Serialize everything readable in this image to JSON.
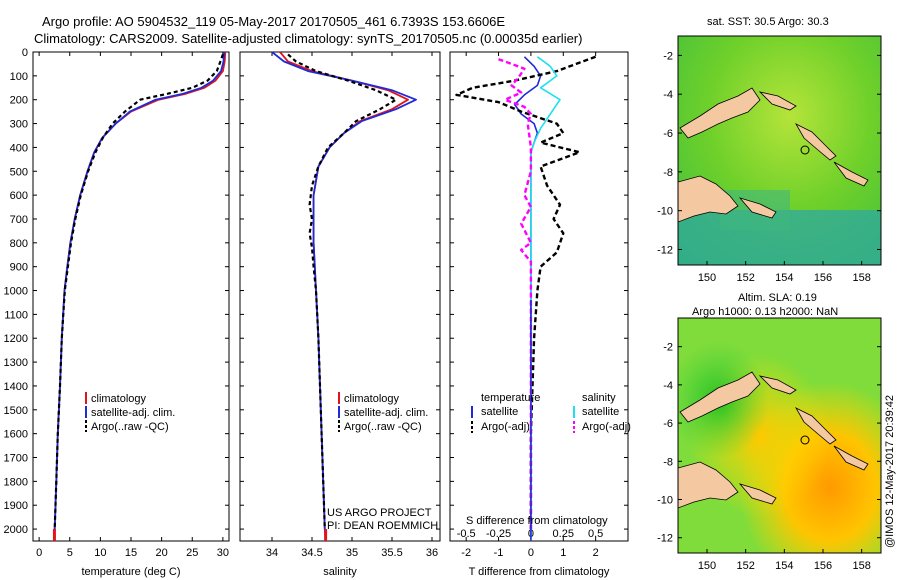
{
  "header": {
    "line1": "Argo profile: AO 5904532_119 05-May-2017 20170505_461 6.7393S 153.6606E",
    "line2": "Climatology: CARS2009. Satellite-adjusted climatology: synTS_20170505.nc (0.00035d earlier)"
  },
  "credits": {
    "line1": "US ARGO PROJECT",
    "line2": "PI: DEAN ROEMMICH"
  },
  "watermark": "@IMOS 12-May-2017 20:39:42",
  "colors": {
    "climatology": "#e0141e",
    "satellite": "#1f2bd8",
    "argo": "#000000",
    "sat_salinity": "#20e0f0",
    "argo_salinity_diff": "#ff00ff",
    "land": "#f4c8a0",
    "sea_green": "#3fc51f"
  },
  "chart_data": [
    {
      "type": "line",
      "title": "",
      "xlabel": "temperature (deg C)",
      "ylabel": "",
      "xlim": [
        -1,
        31
      ],
      "ylim": [
        2050,
        0
      ],
      "xticks": [
        "0",
        "5",
        "10",
        "15",
        "20",
        "25",
        "30"
      ],
      "yticks": [
        "0",
        "100",
        "200",
        "300",
        "400",
        "500",
        "600",
        "700",
        "800",
        "900",
        "1000",
        "1100",
        "1200",
        "1300",
        "1400",
        "1500",
        "1600",
        "1700",
        "1800",
        "1900",
        "2000"
      ],
      "legend": [
        "climatology",
        "satellite-adj. clim.",
        "Argo(..raw -QC)"
      ],
      "series": [
        {
          "name": "climatology",
          "points": [
            [
              30.4,
              0
            ],
            [
              30.3,
              40
            ],
            [
              30.0,
              80
            ],
            [
              28.8,
              120
            ],
            [
              27,
              150
            ],
            [
              24,
              175
            ],
            [
              19.5,
              200
            ],
            [
              15,
              250
            ],
            [
              12.5,
              300
            ],
            [
              10.3,
              360
            ],
            [
              9,
              420
            ],
            [
              7.9,
              500
            ],
            [
              6.7,
              600
            ],
            [
              5.8,
              700
            ],
            [
              5.1,
              800
            ],
            [
              4.6,
              900
            ],
            [
              4.15,
              1000
            ],
            [
              3.7,
              1200
            ],
            [
              3.4,
              1400
            ],
            [
              3.05,
              1600
            ],
            [
              2.8,
              1800
            ],
            [
              2.55,
              2000
            ],
            [
              2.5,
              2040
            ]
          ]
        },
        {
          "name": "satellite-adj. clim.",
          "points": [
            [
              30.2,
              0
            ],
            [
              30.1,
              40
            ],
            [
              29.7,
              80
            ],
            [
              28.4,
              120
            ],
            [
              26.5,
              150
            ],
            [
              23.5,
              175
            ],
            [
              19,
              200
            ],
            [
              14.8,
              250
            ],
            [
              12.5,
              300
            ],
            [
              10.3,
              360
            ],
            [
              9,
              420
            ],
            [
              7.9,
              500
            ],
            [
              6.7,
              600
            ],
            [
              5.8,
              700
            ],
            [
              5.1,
              800
            ],
            [
              4.6,
              900
            ],
            [
              4.15,
              1000
            ],
            [
              3.7,
              1200
            ],
            [
              3.4,
              1400
            ],
            [
              3.05,
              1600
            ],
            [
              2.8,
              1800
            ],
            [
              2.55,
              2000
            ],
            [
              2.5,
              2040
            ]
          ]
        },
        {
          "name": "Argo(..raw -QC)",
          "points": [
            [
              30.0,
              10
            ],
            [
              29.6,
              40
            ],
            [
              29.0,
              80
            ],
            [
              27.5,
              120
            ],
            [
              25,
              150
            ],
            [
              21,
              175
            ],
            [
              16.5,
              200
            ],
            [
              14,
              250
            ],
            [
              12,
              300
            ],
            [
              10.4,
              360
            ],
            [
              9.2,
              420
            ],
            [
              8.0,
              500
            ],
            [
              6.8,
              600
            ],
            [
              5.9,
              700
            ],
            [
              5.2,
              800
            ],
            [
              4.7,
              900
            ],
            [
              4.2,
              1000
            ],
            [
              3.7,
              1200
            ],
            [
              3.4,
              1400
            ],
            [
              3.05,
              1600
            ],
            [
              2.8,
              1800
            ],
            [
              2.55,
              2000
            ]
          ]
        }
      ]
    },
    {
      "type": "line",
      "xlabel": "salinity",
      "xlim": [
        33.6,
        36.1
      ],
      "ylim": [
        2050,
        0
      ],
      "xticks": [
        "34",
        "34.5",
        "35",
        "35.5",
        "36"
      ],
      "legend": [
        "climatology",
        "satellite-adj. clim.",
        "Argo(..raw -QC)"
      ],
      "series": [
        {
          "name": "climatology",
          "points": [
            [
              34.1,
              0
            ],
            [
              34.2,
              40
            ],
            [
              34.5,
              80
            ],
            [
              35.0,
              120
            ],
            [
              35.45,
              160
            ],
            [
              35.7,
              200
            ],
            [
              35.5,
              240
            ],
            [
              35.1,
              290
            ],
            [
              34.9,
              340
            ],
            [
              34.72,
              400
            ],
            [
              34.58,
              480
            ],
            [
              34.52,
              600
            ],
            [
              34.52,
              800
            ],
            [
              34.55,
              1000
            ],
            [
              34.58,
              1200
            ],
            [
              34.6,
              1400
            ],
            [
              34.62,
              1600
            ],
            [
              34.64,
              1800
            ],
            [
              34.66,
              2000
            ],
            [
              34.67,
              2040
            ]
          ]
        },
        {
          "name": "satellite-adj. clim.",
          "points": [
            [
              34.0,
              0
            ],
            [
              34.15,
              40
            ],
            [
              34.45,
              80
            ],
            [
              35.0,
              120
            ],
            [
              35.5,
              160
            ],
            [
              35.8,
              200
            ],
            [
              35.55,
              240
            ],
            [
              35.12,
              290
            ],
            [
              34.9,
              340
            ],
            [
              34.72,
              400
            ],
            [
              34.58,
              480
            ],
            [
              34.52,
              600
            ],
            [
              34.52,
              800
            ],
            [
              34.55,
              1000
            ],
            [
              34.58,
              1200
            ],
            [
              34.6,
              1400
            ],
            [
              34.62,
              1600
            ],
            [
              34.64,
              1800
            ],
            [
              34.66,
              2000
            ],
            [
              34.67,
              2040
            ]
          ]
        },
        {
          "name": "Argo(..raw -QC)",
          "points": [
            [
              34.2,
              10
            ],
            [
              34.3,
              40
            ],
            [
              34.55,
              80
            ],
            [
              34.95,
              120
            ],
            [
              35.3,
              160
            ],
            [
              35.55,
              200
            ],
            [
              35.35,
              240
            ],
            [
              35.05,
              290
            ],
            [
              34.9,
              340
            ],
            [
              34.7,
              400
            ],
            [
              34.58,
              480
            ],
            [
              34.5,
              560
            ],
            [
              34.47,
              640
            ],
            [
              34.5,
              700
            ],
            [
              34.47,
              760
            ],
            [
              34.5,
              820
            ],
            [
              34.52,
              900
            ],
            [
              34.55,
              1000
            ],
            [
              34.58,
              1200
            ],
            [
              34.6,
              1400
            ],
            [
              34.62,
              1600
            ],
            [
              34.64,
              1800
            ],
            [
              34.66,
              2000
            ]
          ]
        }
      ]
    },
    {
      "type": "line",
      "xlabel": "T difference from climatology",
      "top_xlabel": "S difference from climatology",
      "xlim": [
        -2.5,
        3.0
      ],
      "ylim": [
        2050,
        0
      ],
      "xticks": [
        "-2",
        "-1",
        "0",
        "1",
        "2"
      ],
      "top_xticks": [
        "-0.5",
        "-0.25",
        "0",
        "0.25",
        "0.5"
      ],
      "legend_left": {
        "title": "temperature",
        "items": [
          "satellite",
          "Argo(-adj)"
        ]
      },
      "legend_right": {
        "title": "salinity",
        "items": [
          "satellite",
          "Argo(-adj)"
        ]
      },
      "series": [
        {
          "name": "temperature satellite",
          "points": [
            [
              -0.2,
              20
            ],
            [
              0.1,
              60
            ],
            [
              0.3,
              100
            ],
            [
              0.2,
              140
            ],
            [
              -0.2,
              180
            ],
            [
              -0.5,
              220
            ],
            [
              -0.3,
              260
            ],
            [
              0.1,
              300
            ],
            [
              0.2,
              340
            ],
            [
              0.1,
              380
            ],
            [
              0.0,
              420
            ],
            [
              0.0,
              600
            ],
            [
              0.0,
              1000
            ],
            [
              0.0,
              2040
            ]
          ]
        },
        {
          "name": "temperature Argo(-adj)",
          "points": [
            [
              2.0,
              20
            ],
            [
              1.6,
              40
            ],
            [
              0.8,
              80
            ],
            [
              -0.5,
              120
            ],
            [
              -1.8,
              150
            ],
            [
              -2.3,
              180
            ],
            [
              -1.0,
              210
            ],
            [
              -0.3,
              250
            ],
            [
              0.8,
              300
            ],
            [
              1.0,
              340
            ],
            [
              0.3,
              380
            ],
            [
              1.5,
              420
            ],
            [
              0.3,
              480
            ],
            [
              0.5,
              560
            ],
            [
              0.9,
              640
            ],
            [
              0.7,
              700
            ],
            [
              1.0,
              760
            ],
            [
              0.8,
              840
            ],
            [
              0.3,
              900
            ],
            [
              0.2,
              1000
            ],
            [
              0.1,
              1200
            ],
            [
              0.05,
              1400
            ],
            [
              0.0,
              1600
            ],
            [
              0.0,
              2000
            ]
          ]
        },
        {
          "name": "salinity satellite",
          "points": [
            [
              0.2,
              20
            ],
            [
              0.6,
              60
            ],
            [
              0.8,
              100
            ],
            [
              0.3,
              150
            ],
            [
              0.9,
              200
            ],
            [
              0.6,
              260
            ],
            [
              0.3,
              320
            ],
            [
              0.1,
              380
            ],
            [
              0.0,
              420
            ],
            [
              0.0,
              600
            ],
            [
              0.0,
              1000
            ],
            [
              0.0,
              2040
            ]
          ]
        },
        {
          "name": "salinity Argo(-adj)",
          "points": [
            [
              -1.0,
              30
            ],
            [
              -0.6,
              50
            ],
            [
              -0.2,
              70
            ],
            [
              -0.4,
              110
            ],
            [
              -0.6,
              140
            ],
            [
              -0.3,
              170
            ],
            [
              -0.8,
              200
            ],
            [
              -0.2,
              230
            ],
            [
              0.0,
              260
            ],
            [
              -0.1,
              300
            ],
            [
              0.0,
              400
            ],
            [
              0.0,
              500
            ],
            [
              -0.2,
              600
            ],
            [
              0.0,
              650
            ],
            [
              -0.3,
              720
            ],
            [
              0.0,
              800
            ],
            [
              -0.3,
              830
            ],
            [
              0.0,
              880
            ],
            [
              0.0,
              2000
            ]
          ]
        }
      ]
    },
    {
      "type": "heatmap",
      "title": "sat. SST: 30.5 Argo: 30.3",
      "xlim": [
        148.5,
        159
      ],
      "ylim": [
        -12.8,
        -1
      ],
      "xticks": [
        "150",
        "152",
        "154",
        "156",
        "158"
      ],
      "yticks": [
        "-2",
        "-4",
        "-6",
        "-8",
        "-10",
        "-12"
      ],
      "argo_position": [
        153.66,
        -6.74
      ]
    },
    {
      "type": "heatmap",
      "title": "Altim. SLA: 0.19",
      "subtitle": "Argo h1000: 0.13 h2000: NaN",
      "xlim": [
        148.5,
        159
      ],
      "ylim": [
        -12.8,
        -0.5
      ],
      "xticks": [
        "150",
        "152",
        "154",
        "156",
        "158"
      ],
      "yticks": [
        "-2",
        "-4",
        "-6",
        "-8",
        "-10",
        "-12"
      ],
      "argo_position": [
        153.66,
        -6.74
      ]
    }
  ]
}
